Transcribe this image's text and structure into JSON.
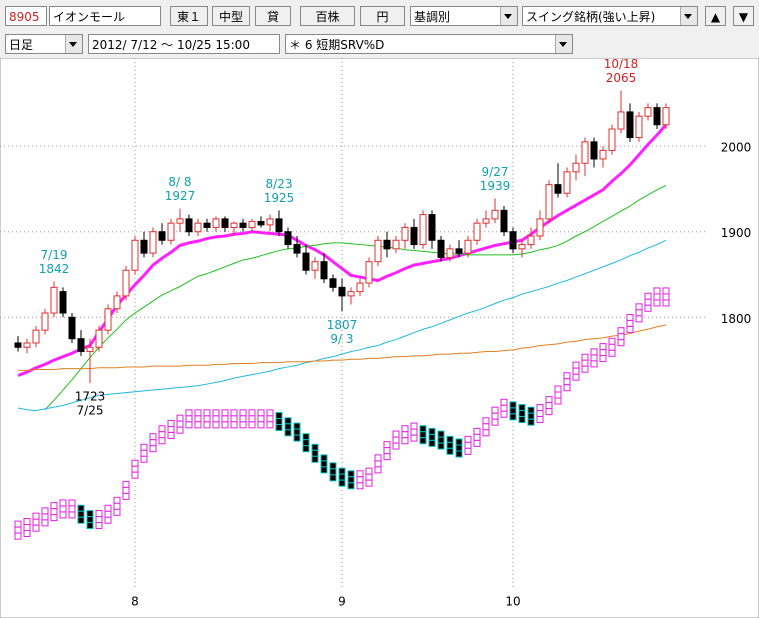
{
  "toolbar": {
    "code": "8905",
    "name": "イオンモール",
    "market": "東１",
    "size": "中型",
    "lending": "貸",
    "unit": "百株",
    "currency": "円",
    "mode": "基調別",
    "list": "スイング銘柄(強い上昇)",
    "up": "▲",
    "down": "▼"
  },
  "toolbar2": {
    "period": "日足",
    "range": "2012/ 7/12 ～ 10/25 15:00",
    "indicator": "＊ 6 短期SRV%D"
  },
  "chart_data": {
    "type": "candlestick",
    "categories": [
      null,
      null,
      null,
      null,
      null,
      null,
      null,
      null,
      null,
      null,
      null,
      null,
      null,
      "8",
      null,
      null,
      null,
      null,
      null,
      null,
      null,
      null,
      null,
      null,
      null,
      null,
      null,
      null,
      null,
      null,
      null,
      null,
      null,
      null,
      null,
      null,
      "9",
      null,
      null,
      null,
      null,
      null,
      null,
      null,
      null,
      null,
      null,
      null,
      null,
      null,
      null,
      null,
      null,
      null,
      null,
      "10",
      null,
      null,
      null,
      null,
      null,
      null,
      null,
      null,
      null,
      null,
      null,
      null,
      null,
      null,
      null,
      null,
      null
    ],
    "open": [
      1770,
      1765,
      1770,
      1785,
      1805,
      1830,
      1800,
      1775,
      1760,
      1765,
      1785,
      1810,
      1825,
      1855,
      1890,
      1875,
      1900,
      1890,
      1910,
      1915,
      1900,
      1910,
      1905,
      1915,
      1905,
      1910,
      1905,
      1912,
      1908,
      1915,
      1900,
      1885,
      1875,
      1855,
      1865,
      1845,
      1835,
      1825,
      1830,
      1840,
      1865,
      1890,
      1880,
      1890,
      1905,
      1885,
      1920,
      1890,
      1870,
      1880,
      1875,
      1890,
      1910,
      1915,
      1925,
      1900,
      1880,
      1885,
      1895,
      1915,
      1955,
      1945,
      1970,
      1980,
      2005,
      1985,
      1995,
      2020,
      2040,
      2010,
      2035,
      2045,
      2025
    ],
    "high": [
      1778,
      1775,
      1790,
      1810,
      1842,
      1835,
      1805,
      1785,
      1775,
      1790,
      1815,
      1830,
      1860,
      1895,
      1900,
      1905,
      1910,
      1915,
      1927,
      1920,
      1915,
      1915,
      1918,
      1918,
      1912,
      1915,
      1915,
      1918,
      1920,
      1925,
      1905,
      1895,
      1885,
      1870,
      1875,
      1850,
      1845,
      1835,
      1845,
      1870,
      1895,
      1900,
      1895,
      1910,
      1915,
      1925,
      1925,
      1895,
      1885,
      1890,
      1895,
      1915,
      1925,
      1939,
      1930,
      1905,
      1890,
      1905,
      1925,
      1960,
      1980,
      1975,
      1990,
      2010,
      2010,
      2000,
      2025,
      2065,
      2050,
      2040,
      2050,
      2050,
      2050
    ],
    "low": [
      1760,
      1758,
      1765,
      1780,
      1800,
      1800,
      1770,
      1755,
      1723,
      1760,
      1780,
      1805,
      1820,
      1850,
      1870,
      1870,
      1885,
      1885,
      1900,
      1895,
      1895,
      1900,
      1900,
      1900,
      1895,
      1900,
      1900,
      1905,
      1900,
      1895,
      1880,
      1870,
      1850,
      1845,
      1840,
      1830,
      1807,
      1815,
      1825,
      1835,
      1860,
      1870,
      1875,
      1880,
      1880,
      1880,
      1880,
      1865,
      1865,
      1870,
      1870,
      1885,
      1905,
      1910,
      1895,
      1875,
      1870,
      1880,
      1890,
      1910,
      1940,
      1940,
      1960,
      1965,
      1975,
      1975,
      1990,
      2015,
      2005,
      2005,
      2030,
      2020,
      2020
    ],
    "close": [
      1765,
      1770,
      1785,
      1805,
      1835,
      1805,
      1775,
      1760,
      1765,
      1785,
      1810,
      1825,
      1855,
      1890,
      1875,
      1900,
      1890,
      1910,
      1915,
      1900,
      1910,
      1905,
      1915,
      1905,
      1910,
      1905,
      1912,
      1908,
      1915,
      1900,
      1885,
      1875,
      1855,
      1865,
      1845,
      1835,
      1825,
      1830,
      1840,
      1865,
      1890,
      1880,
      1890,
      1905,
      1885,
      1920,
      1890,
      1870,
      1880,
      1875,
      1890,
      1910,
      1915,
      1925,
      1900,
      1880,
      1885,
      1895,
      1915,
      1955,
      1945,
      1970,
      1980,
      2005,
      1985,
      1995,
      2020,
      2040,
      2010,
      2035,
      2045,
      2025,
      2045
    ],
    "up_color": "#e03030",
    "down_color": "#000000",
    "ylim": [
      1680,
      2103
    ],
    "yticks": [
      2000,
      1900,
      1800
    ],
    "grid": true,
    "moving_averages": [
      {
        "color": "#ff20ff",
        "width": 3,
        "values": [
          1732,
          1736,
          1741,
          1745,
          1750,
          1754,
          1758,
          1763,
          1767,
          1783,
          1798,
          1814,
          1826,
          1838,
          1849,
          1861,
          1869,
          1876,
          1884,
          1887,
          1889,
          1892,
          1894,
          1895,
          1897,
          1898,
          1900,
          1899,
          1898,
          1897,
          1896,
          1890,
          1884,
          1879,
          1873,
          1865,
          1857,
          1849,
          1847,
          1845,
          1843,
          1848,
          1852,
          1857,
          1861,
          1863,
          1865,
          1867,
          1869,
          1872,
          1875,
          1878,
          1881,
          1884,
          1886,
          1888,
          1890,
          1897,
          1905,
          1912,
          1919,
          1925,
          1931,
          1937,
          1943,
          1949,
          1959,
          1968,
          1978,
          1990,
          2002,
          2013,
          2025
        ]
      },
      {
        "color": "#20c020",
        "width": 1,
        "values": [
          null,
          null,
          null,
          1692,
          1703,
          1715,
          1727,
          1740,
          1753,
          1765,
          1776,
          1786,
          1797,
          1805,
          1812,
          1819,
          1826,
          1831,
          1836,
          1842,
          1848,
          1851,
          1855,
          1859,
          1863,
          1867,
          1869,
          1872,
          1875,
          1878,
          1880,
          1881,
          1883,
          1884,
          1886,
          1887,
          1887,
          1886,
          1885,
          1884,
          1883,
          1882,
          1881,
          1879,
          1878,
          1877,
          1876,
          1875,
          1874,
          1874,
          1873,
          1873,
          1873,
          1873,
          1873,
          1873,
          1874,
          1876,
          1879,
          1881,
          1884,
          1889,
          1895,
          1900,
          1906,
          1912,
          1918,
          1924,
          1930,
          1937,
          1943,
          1949,
          1954
        ]
      },
      {
        "color": "#20b8e0",
        "width": 1,
        "values": [
          1694,
          1692,
          1691,
          1693,
          1695,
          1697,
          1700,
          1703,
          1706,
          1709,
          1710,
          1711,
          1712,
          1713,
          1714,
          1715,
          1716,
          1717,
          1718,
          1719,
          1720,
          1722,
          1724,
          1726,
          1729,
          1731,
          1733,
          1735,
          1737,
          1740,
          1742,
          1744,
          1747,
          1749,
          1752,
          1754,
          1757,
          1760,
          1762,
          1765,
          1767,
          1771,
          1774,
          1778,
          1782,
          1786,
          1789,
          1793,
          1797,
          1801,
          1805,
          1808,
          1812,
          1816,
          1820,
          1823,
          1827,
          1830,
          1833,
          1836,
          1840,
          1843,
          1847,
          1851,
          1855,
          1859,
          1863,
          1867,
          1872,
          1876,
          1881,
          1885,
          1890
        ]
      },
      {
        "color": "#e08020",
        "width": 1,
        "values": [
          1738,
          1738,
          1739,
          1739,
          1739,
          1740,
          1740,
          1740,
          1740,
          1741,
          1741,
          1741,
          1742,
          1742,
          1742,
          1743,
          1743,
          1743,
          1743,
          1744,
          1744,
          1744,
          1745,
          1745,
          1746,
          1746,
          1746,
          1747,
          1747,
          1747,
          1748,
          1748,
          1748,
          1749,
          1749,
          1750,
          1750,
          1751,
          1751,
          1752,
          1752,
          1753,
          1754,
          1754,
          1755,
          1755,
          1756,
          1757,
          1757,
          1758,
          1758,
          1759,
          1760,
          1760,
          1761,
          1762,
          1764,
          1765,
          1767,
          1768,
          1769,
          1771,
          1772,
          1774,
          1775,
          1776,
          1778,
          1779,
          1781,
          1784,
          1786,
          1789,
          1791
        ]
      }
    ],
    "annotations": [
      {
        "date": "7/19",
        "price": 1842,
        "color": "#10a0b0"
      },
      {
        "date": "7/25",
        "price": 1723,
        "color": "#000000"
      },
      {
        "date": "8/ 8",
        "price": 1927,
        "color": "#10a0b0"
      },
      {
        "date": "8/23",
        "price": 1925,
        "color": "#10a0b0"
      },
      {
        "date": "9/ 3",
        "price": 1807,
        "color": "#10a0b0"
      },
      {
        "date": "9/27",
        "price": 1939,
        "color": "#10a0b0"
      },
      {
        "date": "10/18",
        "price": 2065,
        "color": "#d02020"
      }
    ],
    "indicator": {
      "type": "box",
      "ylim": [
        0,
        100
      ],
      "rise_color": "#e020e0",
      "fall_color": "#00c0c0",
      "values": [
        9,
        10,
        12,
        14,
        16,
        17,
        17,
        15,
        13,
        13,
        15,
        18,
        24,
        32,
        38,
        42,
        45,
        47,
        49,
        51,
        51,
        51,
        51,
        51,
        51,
        51,
        51,
        51,
        51,
        50,
        48,
        46,
        42,
        38,
        34,
        31,
        29,
        28,
        28,
        29,
        34,
        39,
        43,
        45,
        46,
        45,
        44,
        43,
        41,
        40,
        41,
        44,
        48,
        52,
        55,
        54,
        53,
        52,
        53,
        56,
        60,
        65,
        69,
        72,
        74,
        76,
        78,
        82,
        87,
        91,
        95,
        97,
        97
      ]
    }
  }
}
